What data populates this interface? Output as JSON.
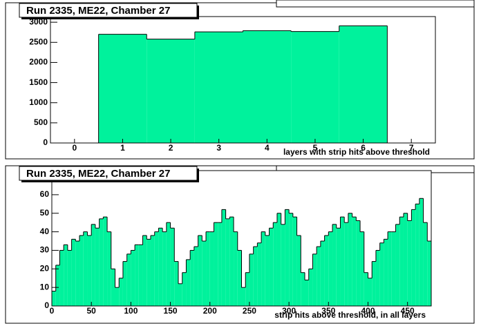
{
  "chart_data": [
    {
      "type": "histogram",
      "title": "Run 2335, ME22, Chamber 27",
      "x_label": "layers with strip hits above threshold",
      "bins": [
        -0.5,
        0.5,
        1.5,
        2.5,
        3.5,
        4.5,
        5.5,
        6.5,
        7.5
      ],
      "values": [
        0,
        2700,
        2580,
        2760,
        2790,
        2770,
        2910,
        0
      ],
      "color": "#00f29c",
      "xlim": [
        -0.5,
        7.5
      ],
      "ylim": [
        0,
        3140
      ],
      "xticks": [
        0,
        1,
        2,
        3,
        4,
        5,
        6,
        7
      ],
      "yticks": [
        0,
        500,
        1000,
        1500,
        2000,
        2500,
        3000
      ]
    },
    {
      "type": "histogram",
      "title": "Run 2335, ME22, Chamber 27",
      "x_label": "strip hits above threshold, in all layers",
      "bins": [
        0,
        5,
        10,
        15,
        20,
        25,
        30,
        35,
        40,
        45,
        50,
        55,
        60,
        65,
        70,
        75,
        80,
        85,
        90,
        95,
        100,
        105,
        110,
        115,
        120,
        125,
        130,
        135,
        140,
        145,
        150,
        155,
        160,
        165,
        170,
        175,
        180,
        185,
        190,
        195,
        200,
        205,
        210,
        215,
        220,
        225,
        230,
        235,
        240,
        245,
        250,
        255,
        260,
        265,
        270,
        275,
        280,
        285,
        290,
        295,
        300,
        305,
        310,
        315,
        320,
        325,
        330,
        335,
        340,
        345,
        350,
        355,
        360,
        365,
        370,
        375,
        380,
        385,
        390,
        395,
        400,
        405,
        410,
        415,
        420,
        425,
        430,
        435,
        440,
        445,
        450,
        455,
        460,
        465,
        470,
        475,
        480
      ],
      "values": [
        8,
        22,
        30,
        33,
        30,
        36,
        35,
        38,
        40,
        38,
        44,
        42,
        47,
        48,
        40,
        20,
        10,
        15,
        24,
        28,
        30,
        33,
        33,
        38,
        36,
        38,
        40,
        42,
        40,
        45,
        42,
        24,
        12,
        18,
        25,
        30,
        32,
        38,
        35,
        40,
        40,
        45,
        45,
        52,
        47,
        48,
        40,
        30,
        10,
        18,
        28,
        32,
        34,
        40,
        38,
        42,
        45,
        50,
        44,
        52,
        50,
        48,
        38,
        18,
        14,
        20,
        28,
        32,
        35,
        38,
        40,
        44,
        42,
        48,
        45,
        50,
        48,
        46,
        40,
        18,
        15,
        24,
        30,
        34,
        36,
        40,
        40,
        44,
        48,
        50,
        46,
        52,
        55,
        58,
        45,
        35
      ],
      "color": "#00f29c",
      "xlim": [
        0,
        480
      ],
      "ylim": [
        0,
        73
      ],
      "xticks": [
        0,
        50,
        100,
        150,
        200,
        250,
        300,
        350,
        400,
        450
      ],
      "yticks": [
        0,
        10,
        20,
        30,
        40,
        50,
        60
      ]
    }
  ]
}
